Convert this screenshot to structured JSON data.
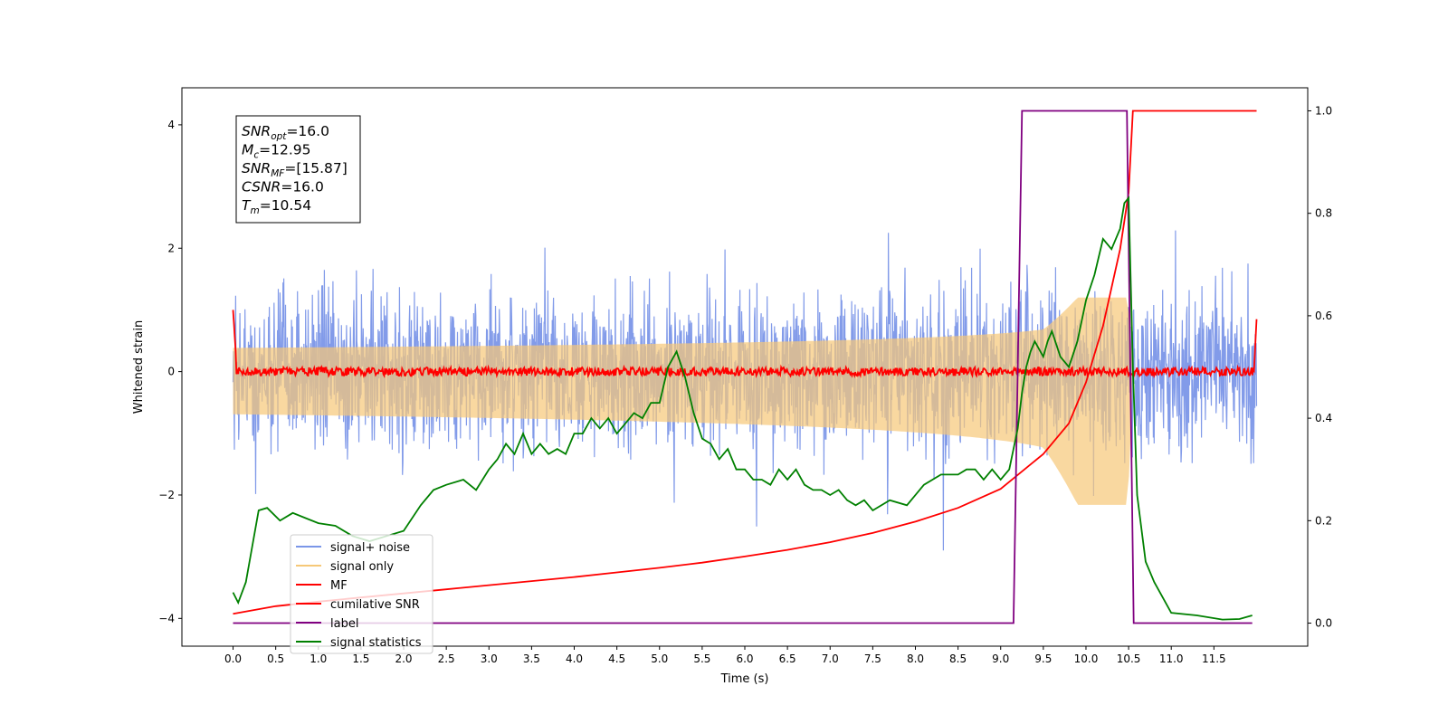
{
  "chart_data": {
    "type": "line",
    "xlabel": "Time (s)",
    "ylabel": "Whitened strain",
    "xlim": [
      -0.6,
      12.6
    ],
    "ylim": [
      -4.45,
      4.6
    ],
    "y2lim": [
      -0.045,
      1.045
    ],
    "xticks": [
      "0.0",
      "0.5",
      "1.0",
      "1.5",
      "2.0",
      "2.5",
      "3.0",
      "3.5",
      "4.0",
      "4.5",
      "5.0",
      "5.5",
      "6.0",
      "6.5",
      "7.0",
      "7.5",
      "8.0",
      "8.5",
      "9.0",
      "9.5",
      "10.0",
      "10.5",
      "11.0",
      "11.5"
    ],
    "yticks": [
      "−4",
      "−2",
      "0",
      "2",
      "4"
    ],
    "y2ticks": [
      "0.0",
      "0.2",
      "0.4",
      "0.6",
      "0.8",
      "1.0"
    ],
    "info_box": {
      "lines": [
        {
          "sym": "SNR",
          "sub": "opt",
          "val": "=16.0"
        },
        {
          "sym": "M",
          "sub": "c",
          "val": "=12.95"
        },
        {
          "sym": "SNR",
          "sub": "MF",
          "val": "=[15.87]"
        },
        {
          "sym": "CSNR",
          "sub": "",
          "val": "=16.0"
        },
        {
          "sym": "T",
          "sub": "m",
          "val": "=10.54"
        }
      ]
    },
    "legend": {
      "location": "lower-left",
      "entries": [
        {
          "label": "signal+ noise",
          "color": "#7b96e8"
        },
        {
          "label": "signal only",
          "color": "#f6c878"
        },
        {
          "label": "MF",
          "color": "#ff0000"
        },
        {
          "label": "cumilative SNR",
          "color": "#ff0000"
        },
        {
          "label": "label",
          "color": "#800080"
        },
        {
          "label": "signal statistics",
          "color": "#008000"
        }
      ]
    },
    "series": [
      {
        "name": "signal+ noise",
        "axis": "left",
        "kind": "noise",
        "color": "#7b96e8",
        "x_range": [
          0,
          12
        ],
        "amplitude": 2.9
      },
      {
        "name": "signal only",
        "axis": "left",
        "kind": "chirp",
        "color": "#f6c878",
        "x_range": [
          0,
          10.54
        ],
        "peak": 1.2,
        "merger_time": 10.54
      },
      {
        "name": "MF",
        "axis": "left",
        "kind": "mf",
        "color": "#ff0000",
        "x_range": [
          0,
          12
        ],
        "baseline": 0.0,
        "x": [
          0,
          0.02,
          0.05,
          11.97,
          12.0
        ],
        "y": [
          1.0,
          0.1,
          0.0,
          0.0,
          0.85
        ]
      },
      {
        "name": "cumilative SNR",
        "axis": "right",
        "x": [
          0,
          0.5,
          1.0,
          1.5,
          2.0,
          2.5,
          3.0,
          3.5,
          4.0,
          4.5,
          5.0,
          5.5,
          6.0,
          6.5,
          7.0,
          7.5,
          8.0,
          8.5,
          9.0,
          9.5,
          9.8,
          10.0,
          10.2,
          10.4,
          10.5,
          10.55,
          11.0,
          11.5,
          12.0
        ],
        "y": [
          0.018,
          0.033,
          0.042,
          0.05,
          0.058,
          0.066,
          0.074,
          0.082,
          0.09,
          0.099,
          0.108,
          0.118,
          0.13,
          0.143,
          0.158,
          0.176,
          0.198,
          0.225,
          0.262,
          0.33,
          0.39,
          0.47,
          0.58,
          0.73,
          0.84,
          1.0,
          1.0,
          1.0,
          1.0
        ]
      },
      {
        "name": "label",
        "axis": "right",
        "x": [
          0,
          9.15,
          9.25,
          10.48,
          10.56,
          11.95
        ],
        "y": [
          0.0,
          0.0,
          1.0,
          1.0,
          0.0,
          0.0
        ]
      },
      {
        "name": "signal statistics",
        "axis": "right",
        "x": [
          0,
          0.06,
          0.15,
          0.3,
          0.4,
          0.55,
          0.7,
          0.85,
          1.0,
          1.2,
          1.4,
          1.6,
          1.8,
          2.0,
          2.2,
          2.35,
          2.5,
          2.7,
          2.85,
          3.0,
          3.1,
          3.2,
          3.3,
          3.4,
          3.5,
          3.6,
          3.7,
          3.8,
          3.9,
          4.0,
          4.1,
          4.2,
          4.3,
          4.4,
          4.5,
          4.6,
          4.7,
          4.8,
          4.9,
          5.0,
          5.1,
          5.2,
          5.3,
          5.4,
          5.5,
          5.6,
          5.7,
          5.8,
          5.9,
          6.0,
          6.1,
          6.2,
          6.3,
          6.4,
          6.5,
          6.6,
          6.7,
          6.8,
          6.9,
          7.0,
          7.1,
          7.2,
          7.3,
          7.4,
          7.5,
          7.7,
          7.9,
          8.1,
          8.3,
          8.5,
          8.6,
          8.7,
          8.8,
          8.9,
          9.0,
          9.1,
          9.2,
          9.25,
          9.3,
          9.35,
          9.4,
          9.5,
          9.55,
          9.6,
          9.7,
          9.8,
          9.9,
          10.0,
          10.1,
          10.2,
          10.3,
          10.4,
          10.45,
          10.5,
          10.55,
          10.6,
          10.7,
          10.8,
          11.0,
          11.3,
          11.6,
          11.8,
          11.95
        ],
        "y": [
          0.06,
          0.04,
          0.08,
          0.22,
          0.225,
          0.2,
          0.215,
          0.205,
          0.195,
          0.19,
          0.17,
          0.16,
          0.17,
          0.18,
          0.23,
          0.26,
          0.27,
          0.28,
          0.26,
          0.3,
          0.32,
          0.35,
          0.33,
          0.37,
          0.33,
          0.35,
          0.33,
          0.34,
          0.33,
          0.37,
          0.37,
          0.4,
          0.38,
          0.4,
          0.37,
          0.39,
          0.41,
          0.4,
          0.43,
          0.43,
          0.5,
          0.53,
          0.48,
          0.41,
          0.36,
          0.35,
          0.32,
          0.34,
          0.3,
          0.3,
          0.28,
          0.28,
          0.27,
          0.3,
          0.28,
          0.3,
          0.27,
          0.26,
          0.26,
          0.25,
          0.26,
          0.24,
          0.23,
          0.24,
          0.22,
          0.24,
          0.23,
          0.27,
          0.29,
          0.29,
          0.3,
          0.3,
          0.28,
          0.3,
          0.28,
          0.3,
          0.38,
          0.45,
          0.5,
          0.53,
          0.55,
          0.52,
          0.55,
          0.57,
          0.52,
          0.5,
          0.55,
          0.63,
          0.68,
          0.75,
          0.73,
          0.77,
          0.82,
          0.83,
          0.5,
          0.25,
          0.12,
          0.08,
          0.02,
          0.015,
          0.007,
          0.008,
          0.015
        ]
      }
    ]
  }
}
